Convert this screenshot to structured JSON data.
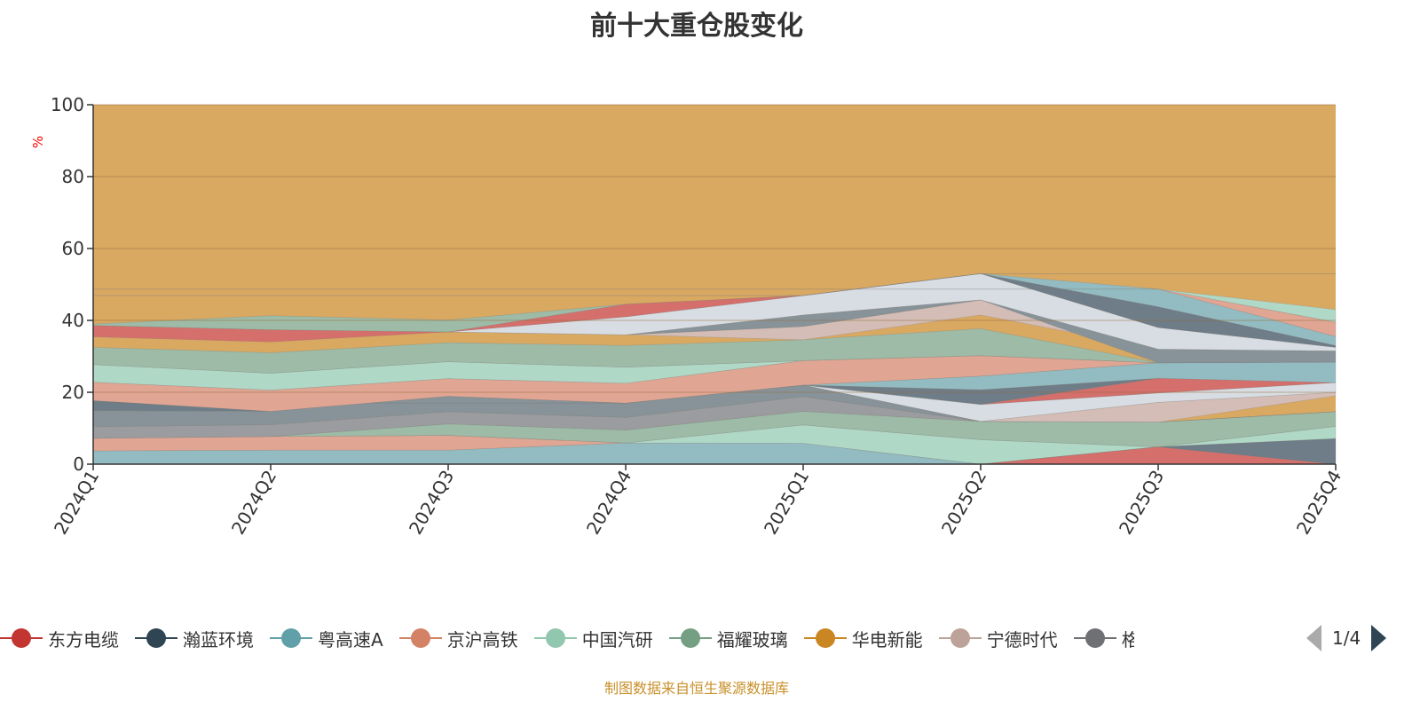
{
  "chart_data": {
    "type": "area",
    "title": "前十大重仓股变化",
    "ylabel": "%",
    "ylim": [
      0,
      100
    ],
    "yticks": [
      "0",
      "20",
      "40",
      "60",
      "80",
      "100"
    ],
    "categories": [
      "2024Q1",
      "2024Q2",
      "2024Q3",
      "2024Q4",
      "2025Q1",
      "2025Q2",
      "2025Q3",
      "2025Q4"
    ],
    "background_color": "#d9a962",
    "bands": [
      {
        "color": "#93bcc2",
        "lower": [
          0,
          0,
          0,
          0,
          0,
          0,
          0,
          0
        ],
        "upper": [
          3.7,
          3.9,
          3.9,
          5.9,
          5.8,
          0,
          0,
          0
        ]
      },
      {
        "color": "#e0a693",
        "lower": [
          3.7,
          3.9,
          3.9,
          5.9,
          5.8,
          0,
          0,
          0
        ],
        "upper": [
          7.2,
          7.7,
          8.0,
          5.9,
          5.8,
          0,
          0,
          0
        ]
      },
      {
        "color": "#b0d8c7",
        "lower": [
          7.2,
          7.7,
          8.0,
          5.9,
          5.8,
          0,
          4.8,
          7.1
        ],
        "upper": [
          7.2,
          7.7,
          8.0,
          5.9,
          10.9,
          6.8,
          4.8,
          10.5
        ]
      },
      {
        "color": "#d56f6c",
        "lower": [
          0,
          0,
          0,
          0,
          0,
          0,
          0,
          0
        ],
        "upper": [
          0,
          0,
          0,
          0,
          0,
          0,
          4.8,
          0
        ]
      },
      {
        "color": "#6e7d88",
        "lower": [
          0,
          0,
          0,
          0,
          0,
          0,
          4.8,
          0
        ],
        "upper": [
          0,
          0,
          0,
          0,
          0,
          0,
          4.8,
          7.1
        ]
      },
      {
        "color": "#9dbba7",
        "lower": [
          7.2,
          7.7,
          8.0,
          5.9,
          10.9,
          6.8,
          4.8,
          10.5
        ],
        "upper": [
          7.2,
          7.7,
          11.2,
          9.5,
          14.7,
          11.9,
          11.7,
          14.6
        ]
      },
      {
        "color": "#9a9ca0",
        "lower": [
          7.2,
          7.7,
          11.2,
          9.5,
          14.7,
          11.9,
          11.7,
          14.6
        ],
        "upper": [
          10.4,
          11.0,
          14.6,
          13,
          18.8,
          11.9,
          11.7,
          14.6
        ]
      },
      {
        "color": "#879399",
        "lower": [
          10.4,
          11.0,
          14.6,
          13,
          18.8,
          11.9,
          11.7,
          14.6
        ],
        "upper": [
          14.9,
          14.7,
          18.9,
          17,
          22,
          11.9,
          11.7,
          14.6
        ]
      },
      {
        "color": "#6e7d88",
        "lower": [
          14.9,
          14.7,
          18.9,
          17,
          22,
          16.6,
          23.9,
          22.7
        ],
        "upper": [
          17.7,
          14.7,
          18.9,
          17,
          22,
          20.7,
          23.9,
          22.7
        ]
      },
      {
        "color": "#d3bdb6",
        "lower": [
          17,
          17,
          17,
          17,
          22,
          11.9,
          11.7,
          19
        ],
        "upper": [
          17,
          17,
          17,
          17,
          22,
          11.9,
          17.2,
          20
        ]
      },
      {
        "color": "#d8dde3",
        "lower": [
          17,
          17,
          17,
          17,
          22,
          11.9,
          17.2,
          20
        ],
        "upper": [
          17,
          17,
          17,
          17,
          22,
          16.6,
          19.8,
          22.7
        ]
      },
      {
        "color": "#d56f6c",
        "lower": [
          22,
          22,
          22,
          22,
          22,
          16.6,
          19.8,
          22.7
        ],
        "upper": [
          22,
          22,
          22,
          22,
          22,
          16.6,
          23.9,
          22.7
        ]
      },
      {
        "color": "#93bcc2",
        "lower": [
          22,
          22,
          22,
          22,
          22,
          20.7,
          23.9,
          22.7
        ],
        "upper": [
          22,
          22,
          22,
          22,
          22,
          24.5,
          28.2,
          28.4
        ]
      },
      {
        "color": "#e0a693",
        "lower": [
          17.7,
          14.7,
          18.9,
          17,
          22,
          24.5,
          28.2,
          28.4
        ],
        "upper": [
          22.8,
          20.6,
          23.8,
          22.5,
          28.8,
          30.2,
          28.2,
          28.4
        ]
      },
      {
        "color": "#b0d8c7",
        "lower": [
          22.8,
          20.6,
          23.8,
          22.5,
          28.8,
          30.2,
          28.2,
          28.4
        ],
        "upper": [
          27.7,
          25.3,
          28.5,
          27,
          28.8,
          30.2,
          28.2,
          28.4
        ]
      },
      {
        "color": "#9dbba7",
        "lower": [
          27.7,
          25.3,
          28.5,
          27,
          28.8,
          30.2,
          28.2,
          28.4
        ],
        "upper": [
          32.5,
          31,
          33.8,
          33,
          34.6,
          37.7,
          28.2,
          28.4
        ]
      },
      {
        "color": "#d3bdb6",
        "lower": [
          36,
          36,
          36.8,
          36,
          34.6,
          41.5,
          32,
          31.5
        ],
        "upper": [
          36,
          36,
          36.8,
          36,
          38.3,
          45.7,
          32,
          31.5
        ]
      },
      {
        "color": "#879399",
        "lower": [
          36,
          36,
          36.8,
          36,
          38.3,
          45.7,
          28.2,
          28.4
        ],
        "upper": [
          36,
          36,
          36.8,
          36,
          41.5,
          45.7,
          32,
          31.5
        ]
      },
      {
        "color": "#d8dde3",
        "lower": [
          36.8,
          36.8,
          36.8,
          36,
          41.5,
          45.7,
          32,
          31.5
        ],
        "upper": [
          36.8,
          36.8,
          36.8,
          41,
          46.9,
          53,
          38,
          32.5
        ]
      },
      {
        "color": "#6e7d88",
        "lower": [
          46.9,
          46.9,
          46.9,
          46.9,
          46.9,
          53,
          38,
          32.5
        ],
        "upper": [
          46.9,
          46.9,
          46.9,
          46.9,
          46.9,
          53,
          43.8,
          33
        ]
      },
      {
        "color": "#93bcc2",
        "lower": [
          46.9,
          46.9,
          46.9,
          46.9,
          46.9,
          53,
          43.8,
          33
        ],
        "upper": [
          46.9,
          46.9,
          46.9,
          46.9,
          46.9,
          53,
          48.7,
          35.5
        ]
      },
      {
        "color": "#e0a693",
        "lower": [
          48.7,
          48.7,
          48.7,
          48.7,
          48.7,
          48.7,
          48.7,
          35.5
        ],
        "upper": [
          48.7,
          48.7,
          48.7,
          48.7,
          48.7,
          48.7,
          48.7,
          39.5
        ]
      },
      {
        "color": "#b0d8c7",
        "lower": [
          48.7,
          48.7,
          48.7,
          48.7,
          48.7,
          48.7,
          48.7,
          39.5
        ],
        "upper": [
          48.7,
          48.7,
          48.7,
          48.7,
          48.7,
          48.7,
          48.7,
          43
        ]
      },
      {
        "color": "#d56f6c",
        "lower": [
          35.4,
          34,
          36.8,
          41,
          46.9,
          53,
          53,
          53
        ],
        "upper": [
          38.6,
          37.4,
          36.8,
          44.5,
          46.9,
          53,
          53,
          53
        ]
      },
      {
        "color": "#9dbba7",
        "lower": [
          38.6,
          37.4,
          36.8,
          44.5,
          46.9,
          53,
          53,
          53
        ],
        "upper": [
          39.0,
          41.3,
          40.1,
          44.5,
          46.9,
          53,
          53,
          53
        ]
      }
    ],
    "grid": true,
    "legend_position": "bottom"
  },
  "legend": {
    "items": [
      {
        "label": "东方电缆",
        "color": "#c23531"
      },
      {
        "label": "瀚蓝环境",
        "color": "#2f4554"
      },
      {
        "label": "粤高速A",
        "color": "#61a0a8"
      },
      {
        "label": "京沪高铁",
        "color": "#d48265"
      },
      {
        "label": "中国汽研",
        "color": "#91c7ae"
      },
      {
        "label": "福耀玻璃",
        "color": "#749f83"
      },
      {
        "label": "华电新能",
        "color": "#ca8622"
      },
      {
        "label": "宁德时代",
        "color": "#bda29a"
      },
      {
        "label": "格",
        "color": "#6e7074"
      }
    ],
    "page": "1/4"
  },
  "footer": "制图数据来自恒生聚源数据库"
}
